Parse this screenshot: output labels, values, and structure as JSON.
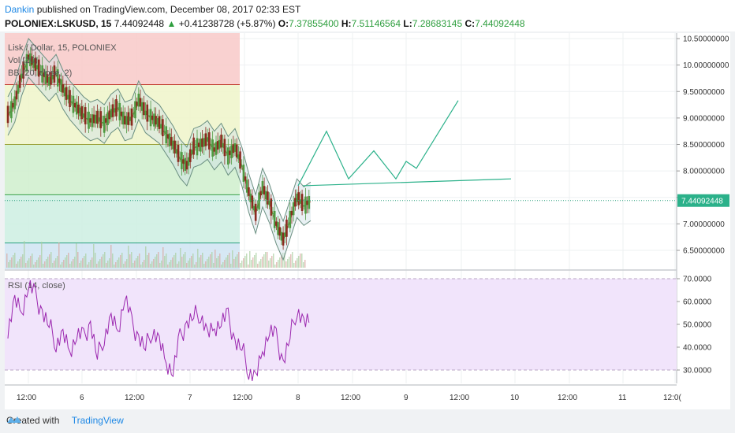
{
  "header": {
    "author": "Dankin",
    "published_text": "published on TradingView.com, December 08, 2017 02:33 EST",
    "symbol_line": "POLONIEX:LSKUSD, 15",
    "price": "7.44092448",
    "change_arrow": "▲",
    "change": "+0.41238728 (+5.87%)",
    "ohlc": {
      "o_label": "O:",
      "o": "7.37855400",
      "h_label": "H:",
      "h": "7.51146564",
      "l_label": "L:",
      "l": "7.28683145",
      "c_label": "C:",
      "c": "7.44092448"
    }
  },
  "legend": {
    "title": "Lisk / Dollar, 15, POLONIEX",
    "vol": "Vol (20)",
    "bb": "BB (20, close, 2)",
    "rsi": "RSI (14, close)"
  },
  "colors": {
    "up": "#4e9a41",
    "down": "#8b2a1f",
    "bb": "#6a8f80",
    "rsi": "#9b27af",
    "projection": "#2bb18a",
    "fib_red": "#f8c9c8",
    "fib_yellow": "#eef5c9",
    "fib_green": "#cfeecd",
    "fib_teal": "#cdeee2",
    "fib_blue": "#cfe4f2",
    "rsi_band": "#f1e4fb",
    "accent": "#1e88e5"
  },
  "chart_data": [
    {
      "type": "candlestick",
      "title": "Lisk / Dollar, 15, POLONIEX",
      "y_axis_ticks": [
        "10.50000000",
        "10.00000000",
        "9.50000000",
        "9.00000000",
        "8.50000000",
        "8.00000000",
        "7.50000000",
        "7.00000000",
        "6.50000000"
      ],
      "y_range": [
        6.2,
        10.55
      ],
      "last_price_label": "7.44092448",
      "x_axis_ticks": [
        "12:00",
        "6",
        "12:00",
        "7",
        "12:00",
        "8",
        "12:00",
        "9",
        "12:00",
        "10",
        "12:00",
        "11",
        "12:0("
      ],
      "fib_levels": [
        9.63,
        8.5,
        7.55,
        6.64
      ],
      "projection_path": [
        [
          7.72,
          7.72
        ],
        [
          8.75,
          8.75
        ],
        [
          7.85,
          7.85
        ],
        [
          8.38,
          8.38
        ],
        [
          7.85,
          7.85
        ],
        [
          8.18,
          8.18
        ],
        [
          8.05,
          8.05
        ],
        [
          9.33,
          9.33
        ]
      ],
      "horizontal_ray": [
        7.72,
        7.85
      ],
      "price_series": [
        9.05,
        9.3,
        9.8,
        10.15,
        10.0,
        9.85,
        9.7,
        9.85,
        9.55,
        9.35,
        9.2,
        9.05,
        8.95,
        9.0,
        8.9,
        9.1,
        9.2,
        8.95,
        9.0,
        9.35,
        9.1,
        9.0,
        8.9,
        8.7,
        8.5,
        8.25,
        8.1,
        8.45,
        8.5,
        8.6,
        8.4,
        8.55,
        8.3,
        8.45,
        8.1,
        7.6,
        7.2,
        7.7,
        7.4,
        7.0,
        6.7,
        7.1,
        7.5,
        7.35,
        7.44
      ]
    },
    {
      "type": "line",
      "title": "RSI (14, close)",
      "y_axis_ticks": [
        "70.0000",
        "60.0000",
        "50.0000",
        "40.0000",
        "30.0000"
      ],
      "y_range": [
        22,
        72
      ],
      "bands": [
        70,
        30
      ],
      "values": [
        48,
        60,
        55,
        68,
        62,
        55,
        50,
        42,
        45,
        38,
        46,
        44,
        50,
        36,
        45,
        52,
        47,
        63,
        50,
        44,
        40,
        48,
        42,
        33,
        30,
        44,
        50,
        54,
        55,
        45,
        48,
        52,
        53,
        42,
        40,
        30,
        26,
        38,
        48,
        44,
        33,
        45,
        57,
        50,
        51
      ]
    }
  ]
}
